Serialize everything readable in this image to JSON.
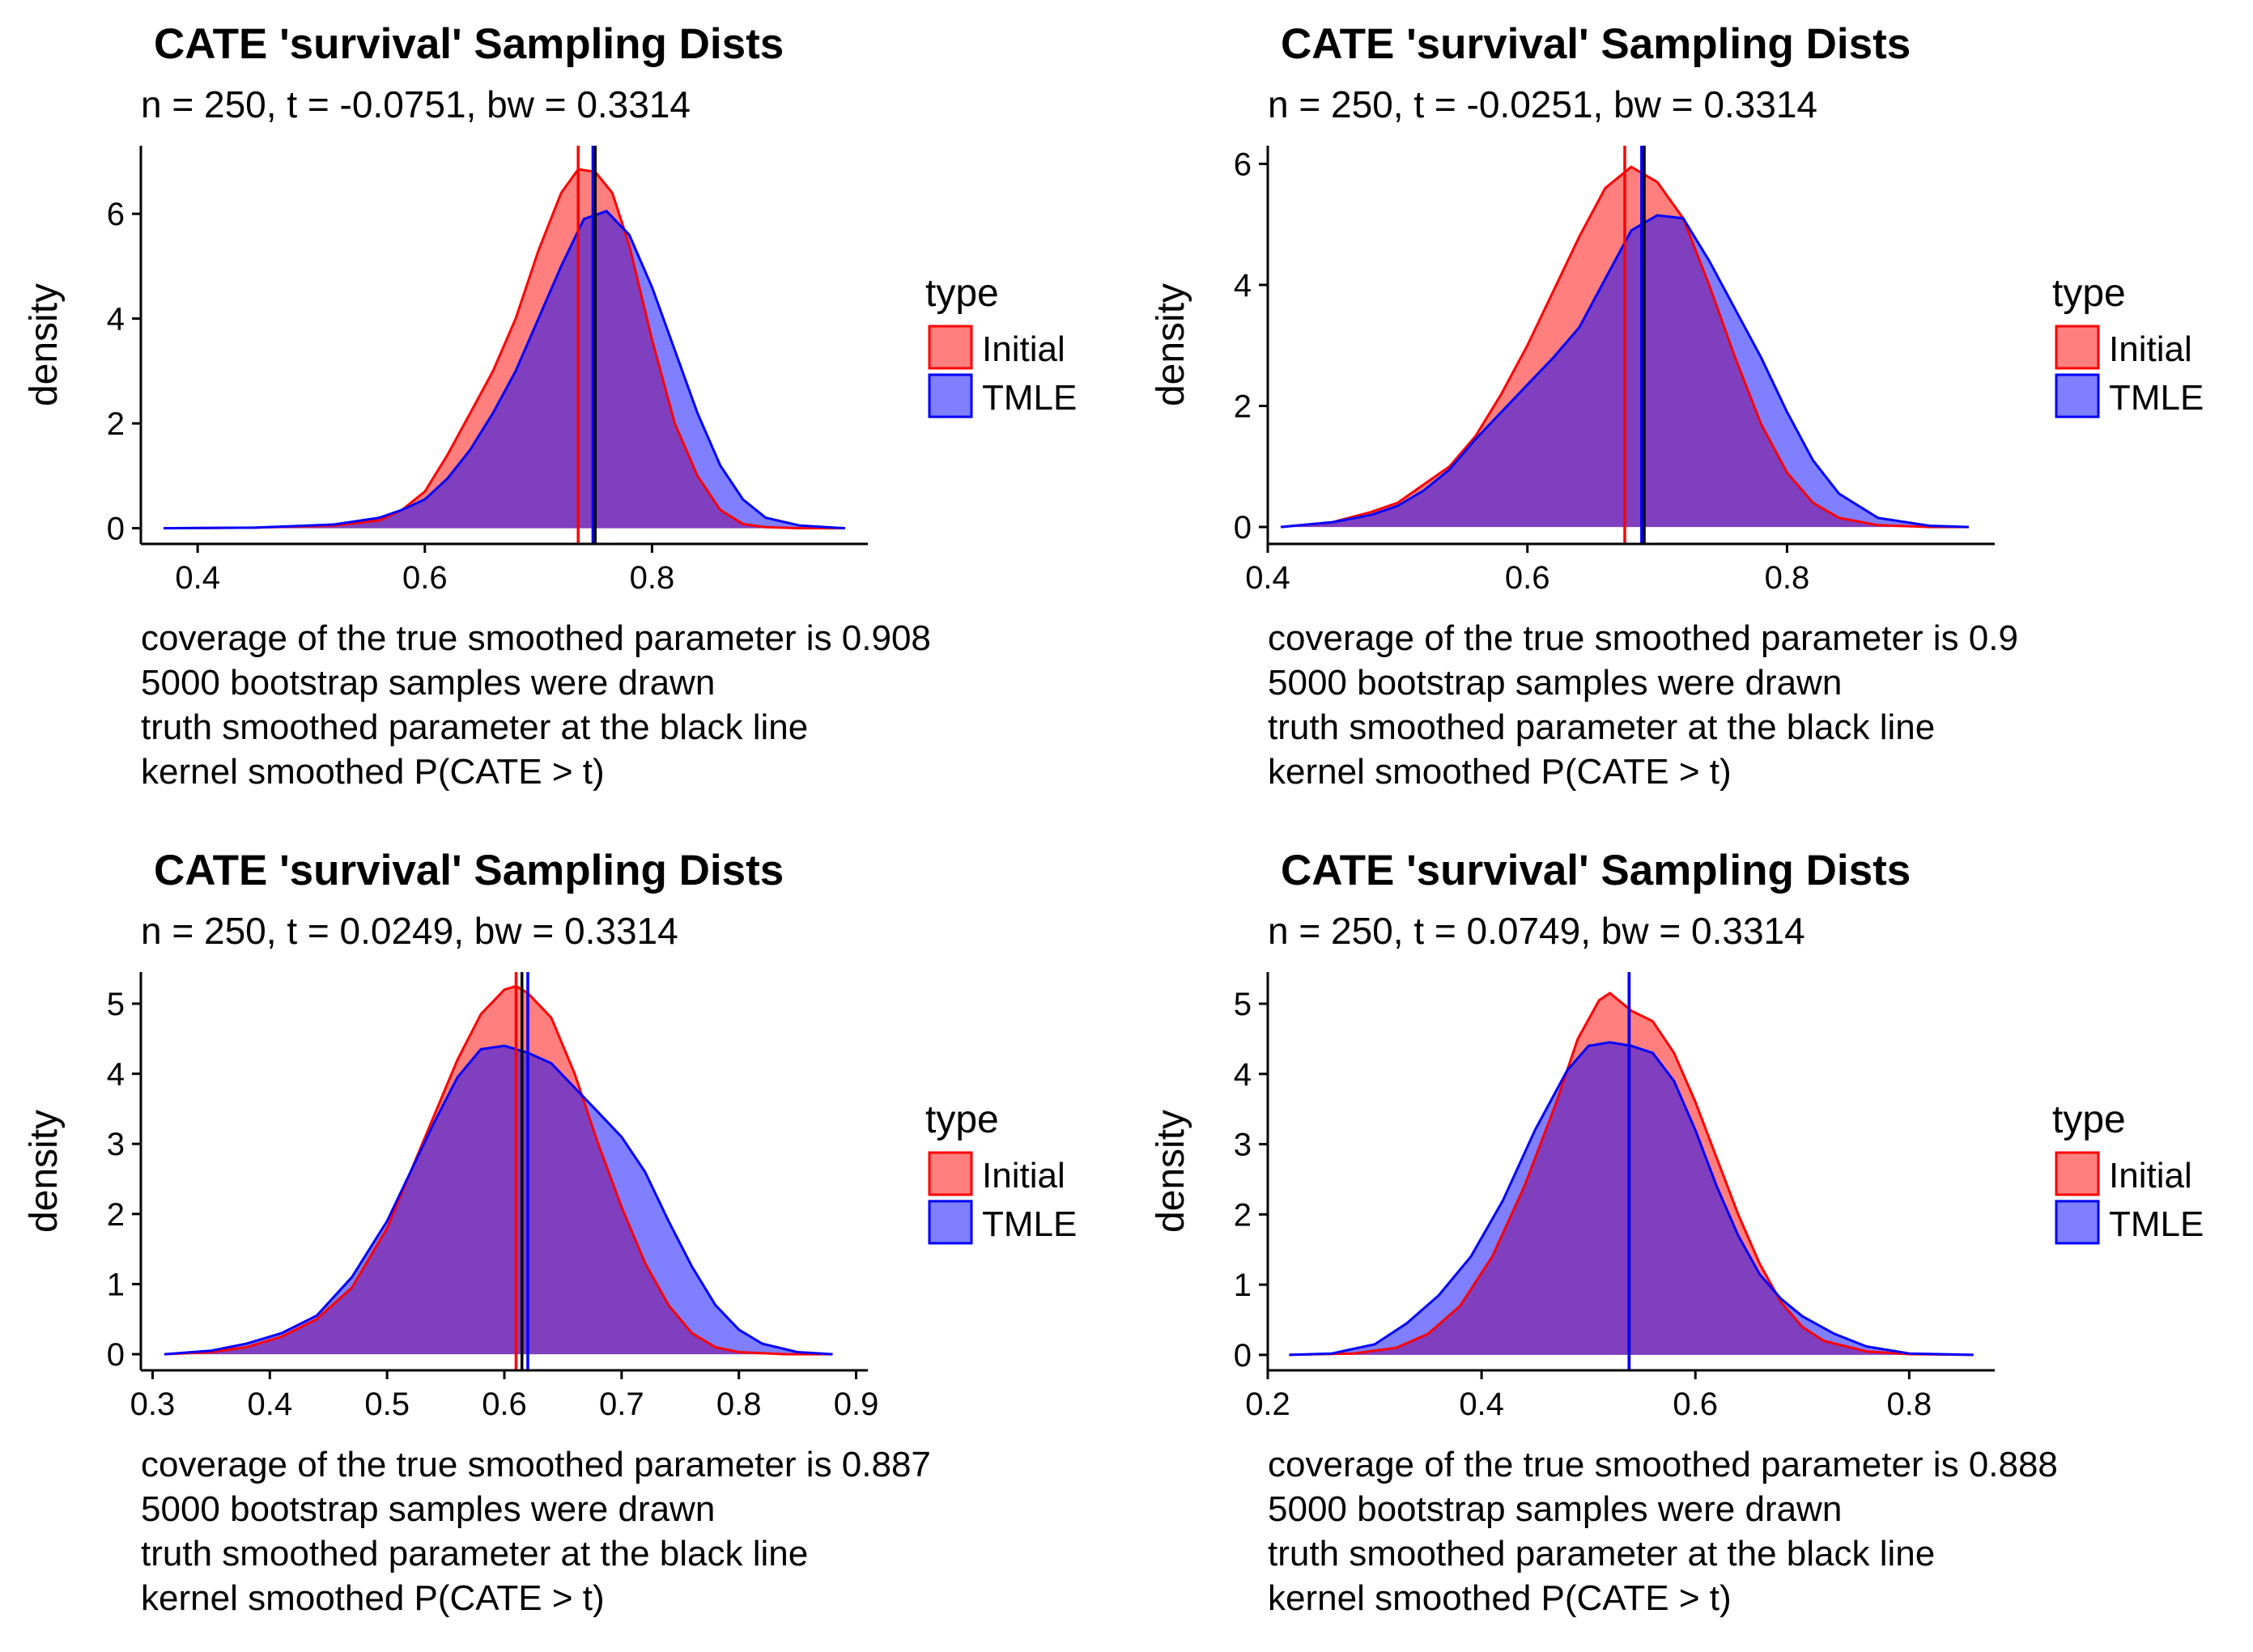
{
  "colors": {
    "initial_fill": "#ff0000",
    "tmle_fill": "#0000ff",
    "overlap": "#7a3fc4",
    "truth_line": "#000000"
  },
  "legend": {
    "title": "type",
    "items": [
      "Initial",
      "TMLE"
    ]
  },
  "chart_data": [
    {
      "type": "area",
      "title": "CATE 'survival' Sampling Dists",
      "subtitle": "n = 250, t = -0.0751, bw = 0.3314",
      "xlabel": "",
      "ylabel": "density",
      "xlim": [
        0.35,
        0.99
      ],
      "ylim": [
        -0.3,
        7.3
      ],
      "xticks": [
        0.4,
        0.6,
        0.8
      ],
      "yticks": [
        0,
        2,
        4,
        6
      ],
      "caption": [
        "coverage of the true smoothed parameter is 0.908",
        "5000 bootstrap samples were drawn",
        "truth smoothed parameter at the black line",
        "kernel smoothed P(CATE > t)"
      ],
      "series": [
        {
          "name": "Initial",
          "mean": 0.735,
          "x": [
            0.37,
            0.45,
            0.52,
            0.56,
            0.58,
            0.6,
            0.62,
            0.64,
            0.66,
            0.68,
            0.7,
            0.72,
            0.735,
            0.75,
            0.765,
            0.78,
            0.8,
            0.82,
            0.84,
            0.86,
            0.88,
            0.9,
            0.93,
            0.97
          ],
          "y": [
            0,
            0.01,
            0.05,
            0.15,
            0.35,
            0.7,
            1.4,
            2.2,
            3.0,
            4.0,
            5.3,
            6.4,
            6.85,
            6.8,
            6.4,
            5.4,
            3.6,
            2.0,
            1.0,
            0.35,
            0.08,
            0.02,
            0,
            0
          ]
        },
        {
          "name": "TMLE",
          "mean": 0.748,
          "x": [
            0.37,
            0.45,
            0.52,
            0.56,
            0.58,
            0.6,
            0.62,
            0.64,
            0.66,
            0.68,
            0.7,
            0.72,
            0.74,
            0.76,
            0.78,
            0.8,
            0.82,
            0.84,
            0.86,
            0.88,
            0.9,
            0.93,
            0.97
          ],
          "y": [
            0,
            0.01,
            0.07,
            0.2,
            0.35,
            0.55,
            0.95,
            1.5,
            2.2,
            3.0,
            4.0,
            5.0,
            5.9,
            6.05,
            5.6,
            4.6,
            3.4,
            2.2,
            1.2,
            0.55,
            0.2,
            0.05,
            0
          ]
        }
      ],
      "truth": 0.75
    },
    {
      "type": "area",
      "title": "CATE 'survival' Sampling Dists",
      "subtitle": "n = 250, t = -0.0251, bw = 0.3314",
      "xlabel": "",
      "ylabel": "density",
      "xlim": [
        0.4,
        0.96
      ],
      "ylim": [
        -0.28,
        6.3
      ],
      "xticks": [
        0.4,
        0.6,
        0.8
      ],
      "yticks": [
        0,
        2,
        4,
        6
      ],
      "caption": [
        "coverage of the true smoothed parameter is 0.9",
        "5000 bootstrap samples were drawn",
        "truth smoothed parameter at the black line",
        "kernel smoothed P(CATE > t)"
      ],
      "series": [
        {
          "name": "Initial",
          "mean": 0.675,
          "x": [
            0.41,
            0.45,
            0.48,
            0.5,
            0.52,
            0.54,
            0.56,
            0.58,
            0.6,
            0.62,
            0.64,
            0.66,
            0.68,
            0.7,
            0.72,
            0.74,
            0.76,
            0.78,
            0.8,
            0.82,
            0.84,
            0.87,
            0.91,
            0.94
          ],
          "y": [
            0,
            0.08,
            0.25,
            0.4,
            0.7,
            1.0,
            1.5,
            2.2,
            3.0,
            3.9,
            4.8,
            5.6,
            5.95,
            5.7,
            5.1,
            4.0,
            2.8,
            1.7,
            0.9,
            0.4,
            0.15,
            0.03,
            0,
            0
          ]
        },
        {
          "name": "TMLE",
          "mean": 0.688,
          "x": [
            0.41,
            0.45,
            0.48,
            0.5,
            0.52,
            0.54,
            0.56,
            0.58,
            0.6,
            0.62,
            0.64,
            0.66,
            0.68,
            0.7,
            0.72,
            0.74,
            0.76,
            0.78,
            0.8,
            0.82,
            0.84,
            0.87,
            0.91,
            0.94
          ],
          "y": [
            0,
            0.08,
            0.2,
            0.35,
            0.6,
            0.95,
            1.45,
            1.9,
            2.35,
            2.8,
            3.3,
            4.1,
            4.9,
            5.15,
            5.1,
            4.4,
            3.6,
            2.8,
            1.9,
            1.1,
            0.55,
            0.15,
            0.02,
            0
          ]
        }
      ],
      "truth": 0.69
    },
    {
      "type": "area",
      "title": "CATE 'survival' Sampling Dists",
      "subtitle": "n = 250, t = 0.0249, bw = 0.3314",
      "xlabel": "",
      "ylabel": "density",
      "xlim": [
        0.29,
        0.91
      ],
      "ylim": [
        -0.23,
        5.45
      ],
      "xticks": [
        0.3,
        0.4,
        0.5,
        0.6,
        0.7,
        0.8,
        0.9
      ],
      "yticks": [
        0,
        1,
        2,
        3,
        4,
        5
      ],
      "caption": [
        "coverage of the true smoothed parameter is 0.887",
        "5000 bootstrap samples were drawn",
        "truth smoothed parameter at the black line",
        "kernel smoothed P(CATE > t)"
      ],
      "series": [
        {
          "name": "Initial",
          "mean": 0.61,
          "x": [
            0.31,
            0.35,
            0.38,
            0.41,
            0.44,
            0.47,
            0.5,
            0.52,
            0.54,
            0.56,
            0.58,
            0.6,
            0.61,
            0.62,
            0.64,
            0.66,
            0.68,
            0.7,
            0.72,
            0.74,
            0.76,
            0.78,
            0.8,
            0.84,
            0.88
          ],
          "y": [
            0,
            0.03,
            0.1,
            0.25,
            0.5,
            0.95,
            1.8,
            2.6,
            3.4,
            4.2,
            4.85,
            5.2,
            5.25,
            5.15,
            4.8,
            4.0,
            3.0,
            2.1,
            1.3,
            0.7,
            0.3,
            0.1,
            0.03,
            0,
            0
          ]
        },
        {
          "name": "TMLE",
          "mean": 0.62,
          "x": [
            0.31,
            0.35,
            0.38,
            0.41,
            0.44,
            0.47,
            0.5,
            0.52,
            0.54,
            0.56,
            0.58,
            0.6,
            0.62,
            0.64,
            0.66,
            0.68,
            0.7,
            0.72,
            0.74,
            0.76,
            0.78,
            0.8,
            0.82,
            0.85,
            0.88
          ],
          "y": [
            0,
            0.05,
            0.15,
            0.3,
            0.55,
            1.1,
            1.9,
            2.6,
            3.3,
            3.95,
            4.35,
            4.4,
            4.3,
            4.15,
            3.8,
            3.45,
            3.1,
            2.6,
            1.9,
            1.25,
            0.7,
            0.35,
            0.15,
            0.03,
            0
          ]
        }
      ],
      "truth": 0.615
    },
    {
      "type": "area",
      "title": "CATE 'survival' Sampling Dists",
      "subtitle": "n = 250, t = 0.0749, bw = 0.3314",
      "xlabel": "",
      "ylabel": "density",
      "xlim": [
        0.2,
        0.88
      ],
      "ylim": [
        -0.22,
        5.45
      ],
      "xticks": [
        0.2,
        0.4,
        0.6,
        0.8
      ],
      "yticks": [
        0,
        1,
        2,
        3,
        4,
        5
      ],
      "caption": [
        "coverage of the true smoothed parameter is 0.888",
        "5000 bootstrap samples were drawn",
        "truth smoothed parameter at the black line",
        "kernel smoothed P(CATE > t)"
      ],
      "series": [
        {
          "name": "Initial",
          "mean": 0.538,
          "x": [
            0.22,
            0.28,
            0.32,
            0.35,
            0.38,
            0.41,
            0.44,
            0.47,
            0.49,
            0.51,
            0.52,
            0.54,
            0.56,
            0.58,
            0.6,
            0.62,
            0.64,
            0.66,
            0.68,
            0.7,
            0.72,
            0.76,
            0.8,
            0.86
          ],
          "y": [
            0,
            0.02,
            0.1,
            0.3,
            0.7,
            1.4,
            2.4,
            3.6,
            4.5,
            5.05,
            5.15,
            4.9,
            4.75,
            4.3,
            3.6,
            2.8,
            2.0,
            1.3,
            0.75,
            0.4,
            0.2,
            0.05,
            0.01,
            0
          ]
        },
        {
          "name": "TMLE",
          "mean": 0.538,
          "x": [
            0.22,
            0.26,
            0.3,
            0.33,
            0.36,
            0.39,
            0.42,
            0.45,
            0.48,
            0.5,
            0.52,
            0.54,
            0.56,
            0.58,
            0.6,
            0.62,
            0.64,
            0.66,
            0.68,
            0.7,
            0.73,
            0.76,
            0.8,
            0.86
          ],
          "y": [
            0,
            0.02,
            0.15,
            0.45,
            0.85,
            1.4,
            2.2,
            3.2,
            4.05,
            4.4,
            4.45,
            4.4,
            4.3,
            3.9,
            3.2,
            2.4,
            1.7,
            1.15,
            0.8,
            0.55,
            0.3,
            0.12,
            0.02,
            0
          ]
        }
      ],
      "truth": 0.538
    }
  ]
}
